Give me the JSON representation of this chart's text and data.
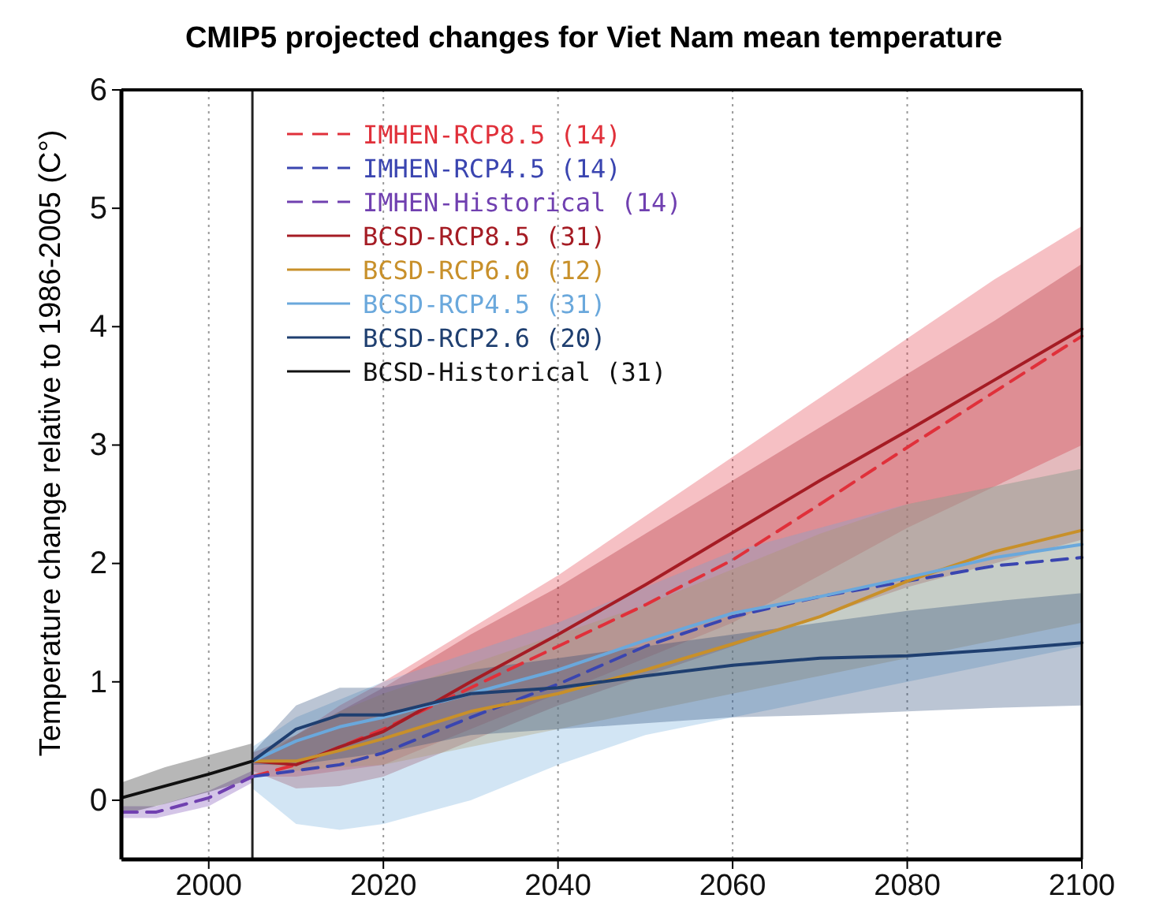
{
  "chart_data": {
    "type": "line",
    "title": "CMIP5 projected changes for Viet Nam mean temperature",
    "ylabel": "Temperature change relative to 1986-2005 (C°)",
    "xlim": [
      1990,
      2100
    ],
    "xticks": [
      2000,
      2020,
      2040,
      2060,
      2080,
      2100
    ],
    "ylim": [
      -0.5,
      6
    ],
    "yticks": [
      0,
      1,
      2,
      3,
      4,
      5,
      6
    ],
    "grid": "x",
    "legend": "top left",
    "ref_lines": [
      {
        "axis": "x",
        "value": 2005,
        "color": "#222222"
      }
    ],
    "series": [
      {
        "name": "IMHEN-RCP8.5 (14)",
        "color": "#e0303a",
        "line_style": "dashed",
        "x": [
          2005,
          2010,
          2015,
          2020,
          2030,
          2040,
          2050,
          2060,
          2070,
          2080,
          2090,
          2100
        ],
        "values": [
          0.2,
          0.3,
          0.45,
          0.6,
          0.95,
          1.3,
          1.65,
          2.03,
          2.5,
          2.98,
          3.45,
          3.92
        ],
        "lower": [
          0.2,
          0.2,
          0.25,
          0.3,
          0.6,
          0.9,
          1.2,
          1.5,
          1.9,
          2.3,
          2.65,
          3.0
        ],
        "upper": [
          0.3,
          0.55,
          0.8,
          1.0,
          1.45,
          1.9,
          2.4,
          2.9,
          3.4,
          3.9,
          4.4,
          4.85
        ]
      },
      {
        "name": "IMHEN-RCP4.5 (14)",
        "color": "#3a45b0",
        "line_style": "dashed",
        "x": [
          2005,
          2010,
          2015,
          2020,
          2030,
          2040,
          2050,
          2060,
          2070,
          2080,
          2090,
          2100
        ],
        "values": [
          0.2,
          0.25,
          0.3,
          0.4,
          0.7,
          0.98,
          1.3,
          1.55,
          1.72,
          1.85,
          1.98,
          2.05
        ]
      },
      {
        "name": "IMHEN-Historical (14)",
        "color": "#7040b0",
        "line_style": "dashed",
        "x": [
          1990,
          1994,
          2000,
          2005
        ],
        "values": [
          -0.1,
          -0.1,
          0.02,
          0.2
        ],
        "lower": [
          -0.15,
          -0.15,
          -0.05,
          0.15
        ],
        "upper": [
          -0.05,
          -0.05,
          0.08,
          0.25
        ]
      },
      {
        "name": "BCSD-RCP8.5 (31)",
        "color": "#a51c24",
        "line_style": "solid",
        "x": [
          2005,
          2010,
          2015,
          2020,
          2030,
          2040,
          2050,
          2060,
          2070,
          2080,
          2090,
          2100
        ],
        "values": [
          0.33,
          0.3,
          0.45,
          0.58,
          1.0,
          1.4,
          1.82,
          2.26,
          2.7,
          3.12,
          3.55,
          3.98
        ],
        "lower": [
          0.25,
          0.1,
          0.12,
          0.2,
          0.5,
          0.8,
          1.05,
          1.3,
          1.55,
          1.8,
          2.0,
          2.2
        ],
        "upper": [
          0.4,
          0.55,
          0.75,
          0.95,
          1.4,
          1.8,
          2.25,
          2.7,
          3.15,
          3.6,
          4.05,
          4.53
        ]
      },
      {
        "name": "BCSD-RCP6.0 (12)",
        "color": "#c8902a",
        "line_style": "solid",
        "x": [
          2005,
          2010,
          2015,
          2020,
          2030,
          2040,
          2050,
          2060,
          2070,
          2080,
          2090,
          2100
        ],
        "values": [
          0.33,
          0.33,
          0.42,
          0.52,
          0.75,
          0.9,
          1.1,
          1.32,
          1.55,
          1.85,
          2.1,
          2.28
        ],
        "lower": [
          0.33,
          0.25,
          0.28,
          0.3,
          0.45,
          0.6,
          0.75,
          0.9,
          1.05,
          1.2,
          1.35,
          1.5
        ],
        "upper": [
          0.35,
          0.55,
          0.75,
          0.9,
          1.15,
          1.4,
          1.65,
          1.95,
          2.25,
          2.5,
          2.65,
          2.8
        ]
      },
      {
        "name": "BCSD-RCP4.5 (31)",
        "color": "#6aa8dc",
        "line_style": "solid",
        "x": [
          2005,
          2010,
          2015,
          2020,
          2030,
          2040,
          2050,
          2060,
          2070,
          2080,
          2090,
          2100
        ],
        "values": [
          0.33,
          0.5,
          0.62,
          0.7,
          0.9,
          1.1,
          1.35,
          1.58,
          1.72,
          1.88,
          2.05,
          2.16
        ],
        "lower": [
          0.1,
          -0.2,
          -0.25,
          -0.2,
          0,
          0.3,
          0.55,
          0.7,
          0.85,
          1.0,
          1.15,
          1.3
        ],
        "upper": [
          0.45,
          0.7,
          0.85,
          1.0,
          1.25,
          1.5,
          1.8,
          2.1,
          2.3,
          2.5,
          2.65,
          2.8
        ]
      },
      {
        "name": "BCSD-RCP2.6 (20)",
        "color": "#1f3f70",
        "line_style": "solid",
        "x": [
          2005,
          2010,
          2015,
          2020,
          2030,
          2040,
          2050,
          2060,
          2070,
          2080,
          2090,
          2100
        ],
        "values": [
          0.33,
          0.6,
          0.72,
          0.72,
          0.9,
          0.95,
          1.05,
          1.14,
          1.2,
          1.22,
          1.27,
          1.33
        ],
        "lower": [
          0.3,
          0.3,
          0.35,
          0.4,
          0.55,
          0.6,
          0.65,
          0.7,
          0.72,
          0.75,
          0.78,
          0.8
        ],
        "upper": [
          0.4,
          0.8,
          0.95,
          0.95,
          1.1,
          1.2,
          1.3,
          1.4,
          1.5,
          1.6,
          1.68,
          1.75
        ]
      },
      {
        "name": "BCSD-Historical (31)",
        "color": "#111111",
        "line_style": "solid",
        "x": [
          1990,
          1995,
          2000,
          2005
        ],
        "values": [
          0.02,
          0.12,
          0.22,
          0.33
        ],
        "lower": [
          -0.12,
          -0.03,
          0.07,
          0.18
        ],
        "upper": [
          0.15,
          0.28,
          0.38,
          0.48
        ]
      }
    ]
  }
}
